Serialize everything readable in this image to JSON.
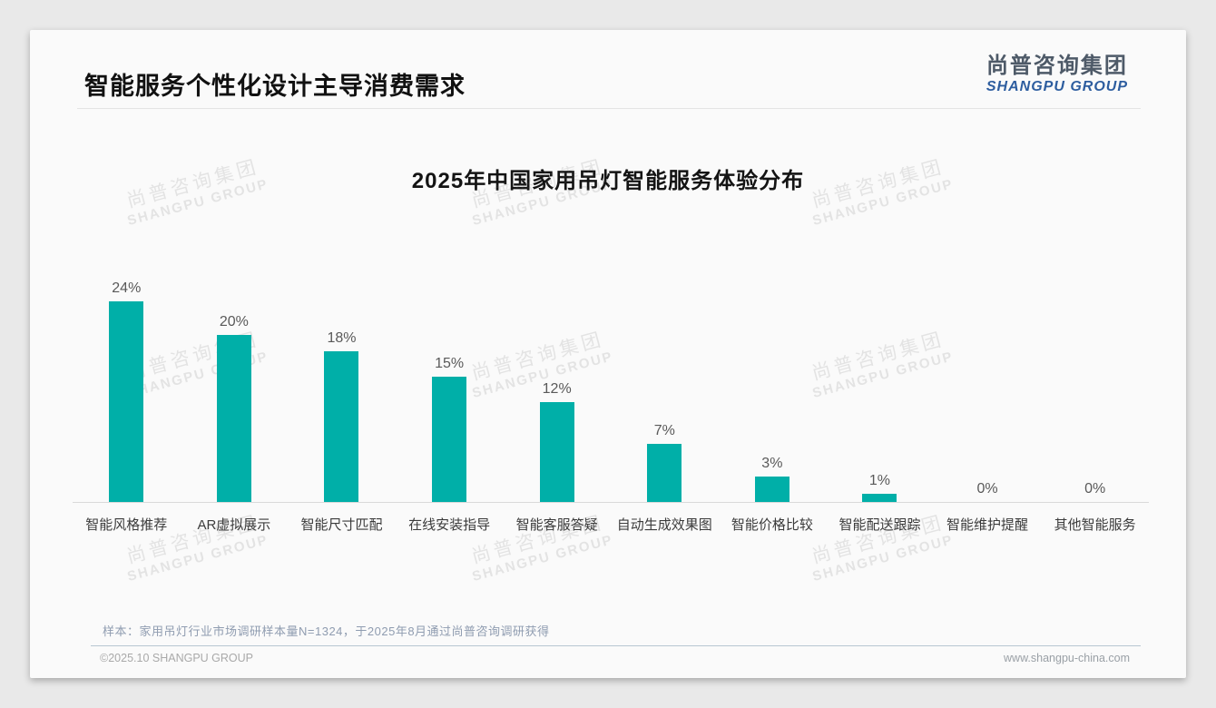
{
  "page": {
    "title": "智能服务个性化设计主导消费需求",
    "logo": {
      "cn": "尚普咨询集团",
      "en": "SHANGPU GROUP"
    },
    "watermark": {
      "cn": "尚普咨询集团",
      "en": "SHANGPU GROUP"
    },
    "footnote": "样本：家用吊灯行业市场调研样本量N=1324，于2025年8月通过尚普咨询调研获得",
    "footer_left": "©2025.10 SHANGPU GROUP",
    "footer_right": "www.shangpu-china.com"
  },
  "colors": {
    "bar_teal": "#00AFA8",
    "logo_blue": "#2d5d9f",
    "logo_gray": "#4e5a68",
    "axis_line": "#d9d9d9",
    "footer_line": "#b7c6d1",
    "footnote_text": "#8f9cb0"
  },
  "chart_data": {
    "type": "bar",
    "title": "2025年中国家用吊灯智能服务体验分布",
    "categories": [
      "智能风格推荐",
      "AR虚拟展示",
      "智能尺寸匹配",
      "在线安装指导",
      "智能客服答疑",
      "自动生成效果图",
      "智能价格比较",
      "智能配送跟踪",
      "智能维护提醒",
      "其他智能服务"
    ],
    "values": [
      24,
      20,
      18,
      15,
      12,
      7,
      3,
      1,
      0,
      0
    ],
    "value_labels": [
      "24%",
      "20%",
      "18%",
      "15%",
      "12%",
      "7%",
      "3%",
      "1%",
      "0%",
      "0%"
    ],
    "bar_color": "#00AFA8",
    "xlabel": "",
    "ylabel": "",
    "ylim": [
      0,
      25
    ],
    "grid": false,
    "legend": false,
    "value_labels_position": "above-bars"
  }
}
